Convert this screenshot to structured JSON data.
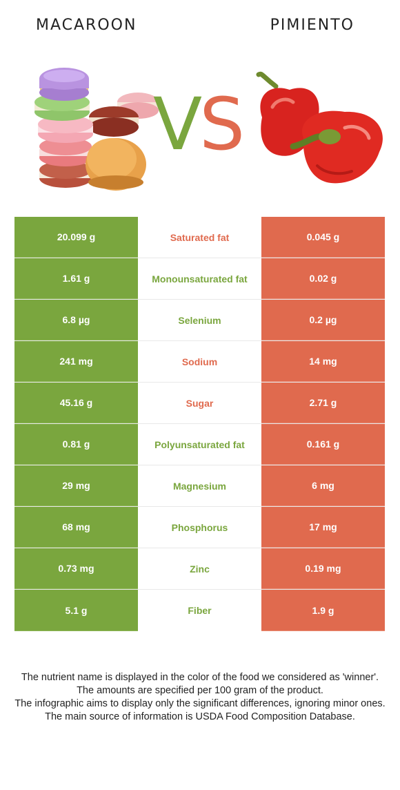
{
  "header": {
    "left_food": "MACAROON",
    "right_food": "PIMIENTO",
    "vs_v": "V",
    "vs_s": "S"
  },
  "colors": {
    "winner_left": "#7aa63e",
    "winner_right": "#e06a4e"
  },
  "rows": [
    {
      "left": "20.099 g",
      "nutrient": "Saturated fat",
      "right": "0.045 g",
      "winner": "right"
    },
    {
      "left": "1.61 g",
      "nutrient": "Monounsaturated fat",
      "right": "0.02 g",
      "winner": "left"
    },
    {
      "left": "6.8 µg",
      "nutrient": "Selenium",
      "right": "0.2 µg",
      "winner": "left"
    },
    {
      "left": "241 mg",
      "nutrient": "Sodium",
      "right": "14 mg",
      "winner": "right"
    },
    {
      "left": "45.16 g",
      "nutrient": "Sugar",
      "right": "2.71 g",
      "winner": "right"
    },
    {
      "left": "0.81 g",
      "nutrient": "Polyunsaturated fat",
      "right": "0.161 g",
      "winner": "left"
    },
    {
      "left": "29 mg",
      "nutrient": "Magnesium",
      "right": "6 mg",
      "winner": "left"
    },
    {
      "left": "68 mg",
      "nutrient": "Phosphorus",
      "right": "17 mg",
      "winner": "left"
    },
    {
      "left": "0.73 mg",
      "nutrient": "Zinc",
      "right": "0.19 mg",
      "winner": "left"
    },
    {
      "left": "5.1 g",
      "nutrient": "Fiber",
      "right": "1.9 g",
      "winner": "left"
    }
  ],
  "footer": {
    "line1": "The nutrient name is displayed in the color of the food we considered as 'winner'.",
    "line2": "The amounts are specified per 100 gram of the product.",
    "line3": "The infographic aims to display only the significant differences, ignoring minor ones.",
    "line4": "The main source of information is USDA Food Composition Database."
  }
}
